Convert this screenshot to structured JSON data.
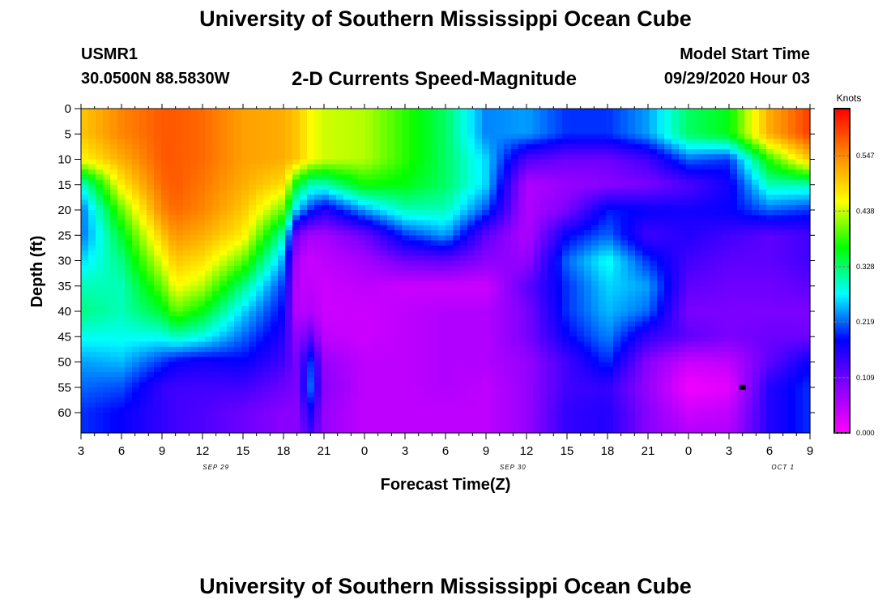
{
  "header": {
    "title": "University of Southern Mississippi Ocean Cube",
    "station_id": "USMR1",
    "station_coords": "30.0500N 88.5830W",
    "plot_title": "2-D Currents Speed-Magnitude",
    "model_label": "Model Start Time",
    "model_date": "09/29/2020 Hour 03"
  },
  "footer": {
    "title": "University of Southern Mississippi Ocean Cube"
  },
  "chart_data": {
    "type": "heatmap",
    "title": "2-D Currents Speed-Magnitude",
    "xlabel": "Forecast Time(Z)",
    "ylabel": "Depth (ft)",
    "x_tick_labels": [
      "3",
      "6",
      "9",
      "12",
      "15",
      "18",
      "21",
      "0",
      "3",
      "6",
      "9",
      "12",
      "15",
      "18",
      "21",
      "0",
      "3",
      "6",
      "9"
    ],
    "date_labels": [
      {
        "text": "SEP 29",
        "at_hours_from_start": 10
      },
      {
        "text": "SEP 30",
        "at_hours_from_start": 32
      },
      {
        "text": "OCT 1",
        "at_hours_from_start": 52
      }
    ],
    "x_range_hours_from_start": [
      0,
      54
    ],
    "y_ticks": [
      0,
      5,
      10,
      15,
      20,
      25,
      30,
      35,
      40,
      45,
      50,
      55,
      60
    ],
    "ylim": [
      0,
      64
    ],
    "y_inverted": true,
    "colorbar": {
      "unit": "Knots",
      "ticks": [
        "0.000",
        "0.109",
        "0.219",
        "0.328",
        "0.438",
        "0.547"
      ],
      "range": [
        0,
        0.64
      ],
      "colors": [
        "#ff00ff",
        "#8800ff",
        "#0000ff",
        "#00ffff",
        "#00ff00",
        "#ffff00",
        "#ff8800",
        "#ff0000"
      ]
    },
    "speed_grid": {
      "x_hours_from_start": [
        0,
        3,
        6,
        7,
        9,
        12,
        15,
        16,
        17,
        18,
        21,
        24,
        27,
        30,
        33,
        36,
        39,
        42,
        45,
        48,
        51,
        54
      ],
      "depth_ft": [
        0,
        5,
        10,
        15,
        20,
        25,
        30,
        35,
        40,
        45,
        50,
        55,
        60,
        64
      ],
      "values_knots": [
        [
          0.5,
          0.55,
          0.58,
          0.58,
          0.57,
          0.53,
          0.52,
          0.5,
          0.46,
          0.44,
          0.43,
          0.38,
          0.33,
          0.23,
          0.24,
          0.2,
          0.2,
          0.24,
          0.33,
          0.36,
          0.52,
          0.6
        ],
        [
          0.5,
          0.55,
          0.58,
          0.58,
          0.57,
          0.53,
          0.52,
          0.5,
          0.46,
          0.44,
          0.43,
          0.38,
          0.33,
          0.23,
          0.24,
          0.2,
          0.2,
          0.24,
          0.33,
          0.36,
          0.52,
          0.6
        ],
        [
          0.46,
          0.52,
          0.58,
          0.58,
          0.57,
          0.53,
          0.52,
          0.5,
          0.46,
          0.44,
          0.43,
          0.38,
          0.33,
          0.26,
          0.13,
          0.11,
          0.11,
          0.14,
          0.22,
          0.2,
          0.38,
          0.5
        ],
        [
          0.28,
          0.47,
          0.57,
          0.58,
          0.56,
          0.52,
          0.48,
          0.35,
          0.3,
          0.3,
          0.37,
          0.36,
          0.33,
          0.26,
          0.06,
          0.08,
          0.09,
          0.1,
          0.13,
          0.17,
          0.3,
          0.3
        ],
        [
          0.22,
          0.4,
          0.55,
          0.57,
          0.55,
          0.5,
          0.4,
          0.25,
          0.2,
          0.16,
          0.24,
          0.3,
          0.3,
          0.21,
          0.06,
          0.1,
          0.19,
          0.18,
          0.17,
          0.18,
          0.22,
          0.2
        ],
        [
          0.22,
          0.35,
          0.5,
          0.54,
          0.52,
          0.47,
          0.3,
          0.1,
          0.07,
          0.07,
          0.11,
          0.2,
          0.24,
          0.12,
          0.06,
          0.18,
          0.22,
          0.14,
          0.16,
          0.14,
          0.12,
          0.14
        ],
        [
          0.26,
          0.32,
          0.45,
          0.5,
          0.48,
          0.4,
          0.24,
          0.06,
          0.04,
          0.05,
          0.07,
          0.11,
          0.12,
          0.09,
          0.08,
          0.22,
          0.28,
          0.2,
          0.14,
          0.12,
          0.12,
          0.14
        ],
        [
          0.3,
          0.3,
          0.4,
          0.46,
          0.43,
          0.32,
          0.2,
          0.05,
          0.05,
          0.04,
          0.05,
          0.04,
          0.04,
          0.04,
          0.12,
          0.2,
          0.26,
          0.24,
          0.12,
          0.11,
          0.11,
          0.12
        ],
        [
          0.32,
          0.3,
          0.35,
          0.4,
          0.36,
          0.26,
          0.18,
          0.05,
          0.06,
          0.04,
          0.04,
          0.05,
          0.06,
          0.06,
          0.1,
          0.2,
          0.25,
          0.22,
          0.1,
          0.1,
          0.1,
          0.1
        ],
        [
          0.28,
          0.28,
          0.28,
          0.3,
          0.28,
          0.22,
          0.16,
          0.08,
          0.12,
          0.05,
          0.04,
          0.05,
          0.06,
          0.06,
          0.1,
          0.18,
          0.23,
          0.15,
          0.12,
          0.1,
          0.11,
          0.11
        ],
        [
          0.24,
          0.25,
          0.2,
          0.18,
          0.17,
          0.18,
          0.14,
          0.1,
          0.2,
          0.08,
          0.05,
          0.05,
          0.06,
          0.06,
          0.08,
          0.14,
          0.2,
          0.09,
          0.04,
          0.05,
          0.12,
          0.18
        ],
        [
          0.22,
          0.21,
          0.15,
          0.14,
          0.14,
          0.14,
          0.11,
          0.1,
          0.22,
          0.09,
          0.05,
          0.05,
          0.06,
          0.05,
          0.08,
          0.14,
          0.15,
          0.08,
          0.01,
          0.02,
          0.16,
          0.2
        ],
        [
          0.2,
          0.18,
          0.15,
          0.14,
          0.13,
          0.11,
          0.09,
          0.09,
          0.17,
          0.08,
          0.05,
          0.05,
          0.05,
          0.05,
          0.08,
          0.15,
          0.16,
          0.09,
          0.04,
          0.05,
          0.16,
          0.2
        ],
        [
          0.2,
          0.18,
          0.15,
          0.14,
          0.13,
          0.11,
          0.09,
          0.09,
          0.14,
          0.08,
          0.05,
          0.05,
          0.05,
          0.05,
          0.08,
          0.15,
          0.16,
          0.09,
          0.06,
          0.06,
          0.16,
          0.2
        ]
      ]
    },
    "marker": {
      "x_hours_from_start": 49,
      "depth_ft": 55
    }
  }
}
